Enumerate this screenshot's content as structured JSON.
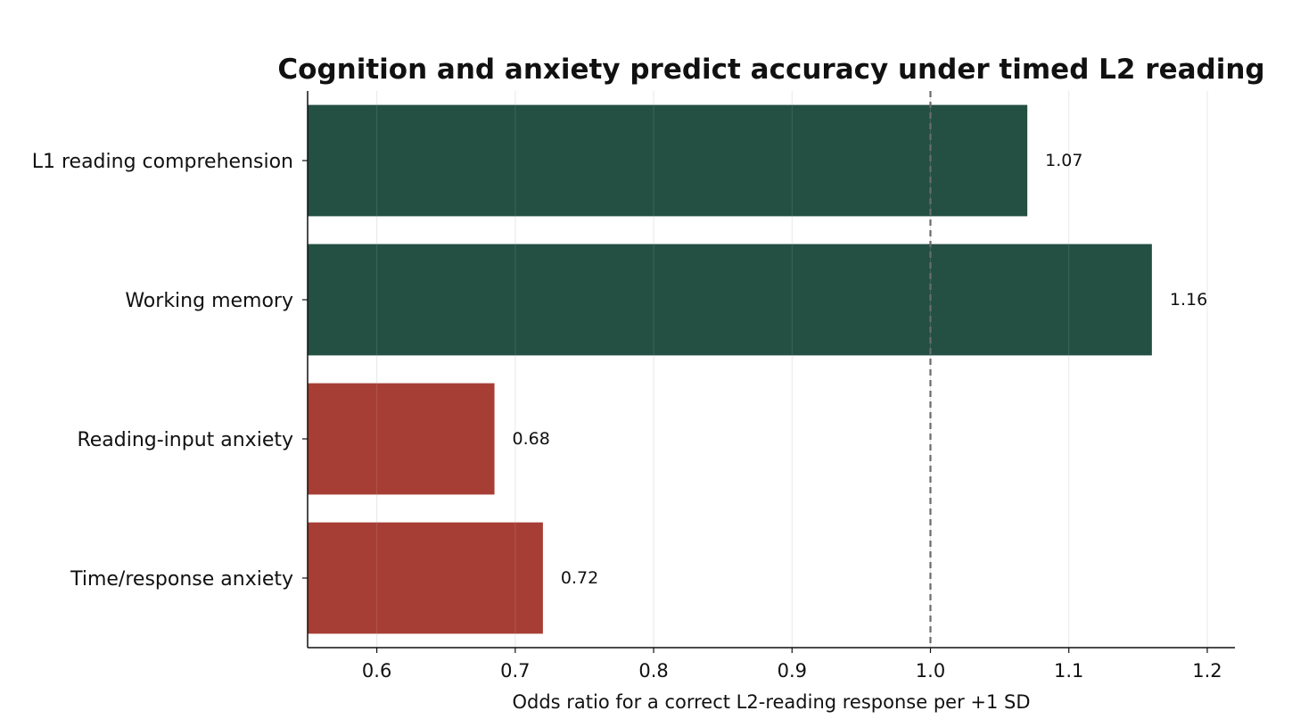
{
  "chart_data": {
    "type": "bar",
    "orientation": "horizontal",
    "title": "Cognition and anxiety predict accuracy under timed L2 reading",
    "xlabel": "Odds ratio for a correct L2-reading response per +1 SD",
    "ylabel": "",
    "categories": [
      "L1 reading comprehension",
      "Working memory",
      "Reading-input anxiety",
      "Time/response anxiety"
    ],
    "values": [
      1.07,
      1.16,
      0.685,
      0.72
    ],
    "data_labels": [
      "1.07",
      "1.16",
      "0.68",
      "0.72"
    ],
    "bar_colors": [
      "#244f43",
      "#244f43",
      "#a63e35",
      "#a63e35"
    ],
    "xlim": [
      0.55,
      1.22
    ],
    "xticks": [
      0.6,
      0.7,
      0.8,
      0.9,
      1.0,
      1.1,
      1.2
    ],
    "xtick_labels": [
      "0.6",
      "0.7",
      "0.8",
      "0.9",
      "1.0",
      "1.1",
      "1.2"
    ],
    "reference_line": 1.0,
    "grid": "x",
    "legend": "none"
  }
}
